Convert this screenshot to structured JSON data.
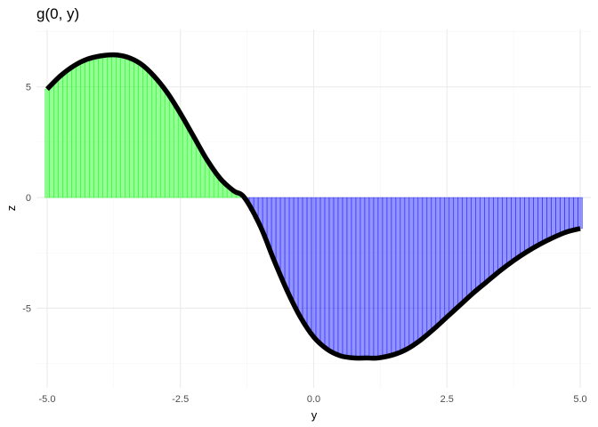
{
  "chart_data": {
    "type": "area",
    "title": "g(0, y)",
    "xlabel": "y",
    "ylabel": "z",
    "xlim": [
      -5.2,
      5.2
    ],
    "ylim": [
      -8.6,
      7.6
    ],
    "x_ticks": [
      {
        "value": -5.0,
        "label": "-5.0"
      },
      {
        "value": -2.5,
        "label": "-2.5"
      },
      {
        "value": 0.0,
        "label": "0.0"
      },
      {
        "value": 2.5,
        "label": "2.5"
      },
      {
        "value": 5.0,
        "label": "5.0"
      }
    ],
    "y_ticks": [
      {
        "value": 5,
        "label": "5"
      },
      {
        "value": 0,
        "label": "0"
      },
      {
        "value": -5,
        "label": "-5"
      }
    ],
    "x_minor": [
      -3.75,
      -1.25,
      1.25,
      3.75
    ],
    "y_minor": [
      7.5,
      2.5,
      -2.5,
      -7.5
    ],
    "positive_fill": "#00ff00",
    "negative_fill": "#0000ff",
    "line_color": "#000000",
    "series": [
      {
        "name": "g(0, y)",
        "x": [
          -5.0,
          -4.75,
          -4.5,
          -4.25,
          -4.0,
          -3.75,
          -3.5,
          -3.25,
          -3.0,
          -2.75,
          -2.5,
          -2.25,
          -2.0,
          -1.75,
          -1.5,
          -1.3,
          -1.0,
          -0.75,
          -0.5,
          -0.25,
          0.0,
          0.25,
          0.5,
          0.75,
          1.0,
          1.2,
          1.5,
          1.75,
          2.0,
          2.25,
          2.5,
          2.75,
          3.0,
          3.25,
          3.5,
          3.75,
          4.0,
          4.25,
          4.5,
          4.75,
          5.0
        ],
        "values": [
          4.9,
          5.5,
          5.95,
          6.25,
          6.4,
          6.45,
          6.35,
          6.05,
          5.5,
          4.75,
          3.8,
          2.75,
          1.7,
          0.85,
          0.3,
          0.0,
          -1.3,
          -2.8,
          -4.2,
          -5.4,
          -6.3,
          -6.85,
          -7.15,
          -7.25,
          -7.25,
          -7.25,
          -7.1,
          -6.85,
          -6.45,
          -5.95,
          -5.4,
          -4.85,
          -4.3,
          -3.8,
          -3.3,
          -2.85,
          -2.45,
          -2.1,
          -1.8,
          -1.55,
          -1.4
        ]
      }
    ]
  }
}
